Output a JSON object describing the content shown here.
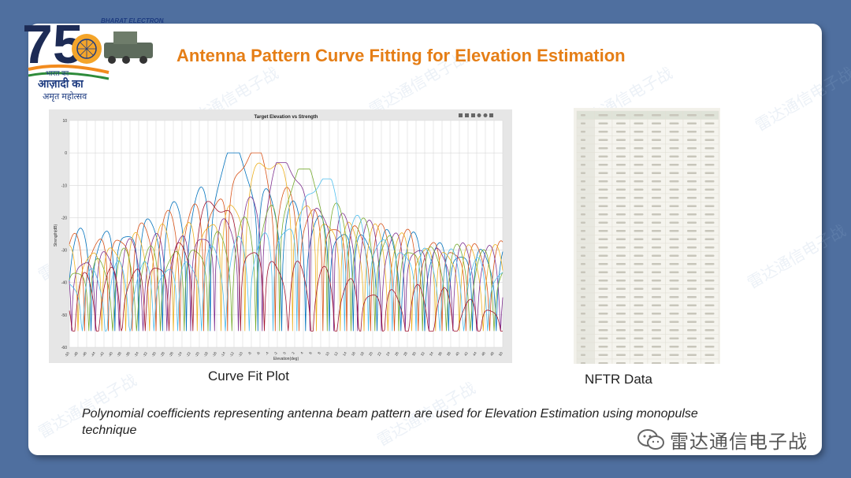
{
  "slide": {
    "title": "Antenna Pattern Curve Fitting for Elevation Estimation",
    "curve_caption": "Curve Fit Plot",
    "nftr_caption": "NFTR Data",
    "footer_text": "Polynomial coefficients representing antenna beam pattern are used for Elevation Estimation using monopulse technique",
    "watermark_text": "雷达通信电子战",
    "bg_watermark": "雷达通信电子战"
  },
  "logo": {
    "number": "75",
    "tagline_lines": [
      "भारत का",
      "आज़ादी का",
      "अमृत महोत्सव"
    ],
    "company": "BHARAT ELECTRONICS"
  },
  "colors": {
    "background": "#4f6f9f",
    "title": "#e57e16",
    "series": [
      "#0072bd",
      "#d95319",
      "#edb120",
      "#7e2f8e",
      "#77ac30",
      "#4dbeee",
      "#a2142f"
    ]
  },
  "chart_data": {
    "type": "line",
    "title": "Target Elevation vs Strength",
    "xlabel": "Elevation(deg)",
    "ylabel": "Strength(dB)",
    "xlim": [
      -50,
      50
    ],
    "ylim": [
      -60,
      10
    ],
    "x_ticks": [
      -50,
      -48,
      -46,
      -44,
      -42,
      -40,
      -38,
      -36,
      -34,
      -32,
      -30,
      -28,
      -26,
      -24,
      -22,
      -20,
      -18,
      -16,
      -14,
      -12,
      -10,
      -8,
      -6,
      -4,
      -2,
      0,
      2,
      4,
      6,
      8,
      10,
      12,
      14,
      16,
      18,
      20,
      22,
      24,
      26,
      28,
      30,
      32,
      34,
      36,
      38,
      40,
      42,
      44,
      46,
      48,
      50
    ],
    "y_ticks": [
      10,
      0,
      -10,
      -20,
      -30,
      -40,
      -50,
      -60
    ],
    "y_tick_labels": [
      "10",
      "0",
      "-10",
      "-20",
      "-30",
      "-40",
      "-50",
      "-60"
    ],
    "grid": true,
    "series_peaks": [
      {
        "center": -12,
        "peak": 0
      },
      {
        "center": -8,
        "peak": 0
      },
      {
        "center": -4,
        "peak": -2
      },
      {
        "center": 0,
        "peak": -3
      },
      {
        "center": 4,
        "peak": -5
      },
      {
        "center": 8,
        "peak": -8
      },
      {
        "center": -16,
        "peak": -15
      }
    ]
  },
  "nftr_table": {
    "rows": 30,
    "cols": 8
  }
}
